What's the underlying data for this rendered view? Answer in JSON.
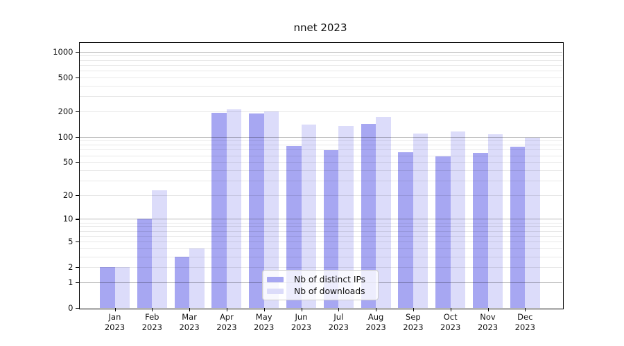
{
  "chart_data": {
    "type": "bar",
    "title": "nnet 2023",
    "categories": [
      "Jan",
      "Feb",
      "Mar",
      "Apr",
      "May",
      "Jun",
      "Jul",
      "Aug",
      "Sep",
      "Oct",
      "Nov",
      "Dec"
    ],
    "category_year": "2023",
    "series": [
      {
        "name": "Nb of distinct IPs",
        "key": "distinct-ips",
        "color": "#a7a7f2",
        "values": [
          2,
          10,
          3,
          190,
          188,
          78,
          69,
          142,
          66,
          59,
          64,
          76
        ]
      },
      {
        "name": "Nb of downloads",
        "key": "downloads",
        "color": "#dcdcfa",
        "values": [
          2,
          23,
          4,
          210,
          197,
          140,
          135,
          172,
          110,
          115,
          107,
          98
        ]
      }
    ],
    "yticks": [
      0,
      1,
      2,
      5,
      10,
      20,
      50,
      100,
      200,
      500,
      1000
    ],
    "major_grid_values": [
      1,
      10,
      100,
      1000
    ],
    "scale": "log10(1+y)",
    "ylim": [
      0,
      1300
    ],
    "grid": "major+minor",
    "legend_position": "lower-center",
    "colors": {
      "major_grid": "rgba(0,0,0,0.28)",
      "minor_grid": "rgba(0,0,0,0.09)",
      "spine": "#000000",
      "text": "#111111",
      "background": "#ffffff"
    }
  }
}
